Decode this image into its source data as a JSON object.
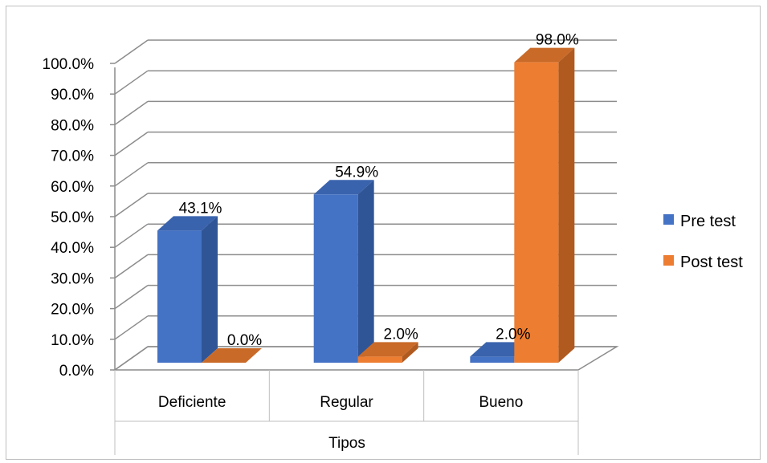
{
  "chart_data": {
    "type": "bar",
    "style": "3d-clustered-column",
    "categories": [
      "Deficiente",
      "Regular",
      "Bueno"
    ],
    "series": [
      {
        "name": "Pre test",
        "values": [
          43.1,
          54.9,
          2.0
        ],
        "labels": [
          "43.1%",
          "54.9%",
          "2.0%"
        ],
        "color": "#4472c4",
        "side_color": "#2f5597",
        "top_color": "#3a63ad"
      },
      {
        "name": "Post test",
        "values": [
          0.0,
          2.0,
          98.0
        ],
        "labels": [
          "0.0%",
          "2.0%",
          "98.0%"
        ],
        "color": "#ed7d31",
        "side_color": "#b05a20",
        "top_color": "#c96a28"
      }
    ],
    "xlabel": "Tipos",
    "ylabel": "",
    "ylim": [
      0,
      100
    ],
    "yticks": [
      "0.0%",
      "10.0%",
      "20.0%",
      "30.0%",
      "40.0%",
      "50.0%",
      "60.0%",
      "70.0%",
      "80.0%",
      "90.0%",
      "100.0%"
    ],
    "grid": true,
    "legend_position": "right",
    "colors": {
      "gridline": "#8c8c8c",
      "frame": "#bfbfbf"
    }
  }
}
